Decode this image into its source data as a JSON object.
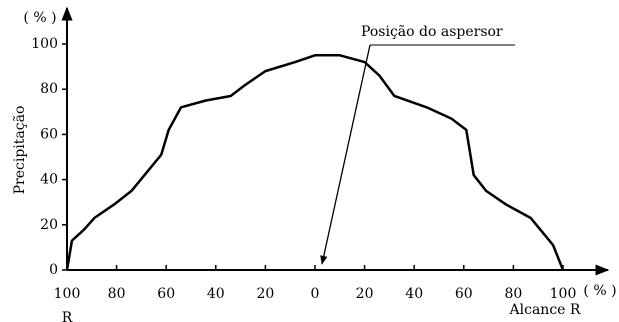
{
  "chart_data": {
    "type": "line",
    "ylabel": "Precipitação",
    "ylabel_unit": "( % )",
    "xlabel": "Alcance R",
    "xlabel_unit": "( % )",
    "x_sublabel": "R",
    "annotation": "Posição do aspersor",
    "x": [
      -100,
      -98,
      -93,
      -89,
      -81,
      -74,
      -68,
      -62,
      -59,
      -54,
      -44,
      -34,
      -28,
      -20,
      -8,
      0,
      10,
      20,
      26,
      32,
      45,
      55,
      61,
      64,
      69,
      77,
      87,
      93,
      96,
      100
    ],
    "series": [
      {
        "color": "#000000",
        "values": [
          0,
          13,
          18,
          23,
          29,
          35,
          43,
          51,
          62,
          72,
          75,
          77,
          82,
          88,
          92,
          95,
          95,
          92,
          86,
          77,
          72,
          67,
          62,
          42,
          35,
          29,
          23,
          15,
          11,
          0
        ]
      }
    ],
    "xlim": [
      -100,
      100
    ],
    "xticks": [
      {
        "value": -100,
        "label": "100"
      },
      {
        "value": -80,
        "label": "80"
      },
      {
        "value": -60,
        "label": "60"
      },
      {
        "value": -40,
        "label": "40"
      },
      {
        "value": -20,
        "label": "20"
      },
      0,
      20,
      40,
      60,
      80,
      100
    ],
    "ylim": [
      0,
      100
    ],
    "yticks": [
      0,
      20,
      40,
      60,
      80,
      100
    ],
    "grid": false
  }
}
